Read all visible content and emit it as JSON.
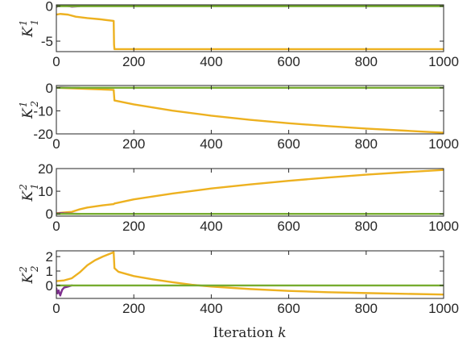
{
  "chart_data": [
    {
      "type": "line",
      "ylabel_main": "K",
      "ylabel_sup": "1",
      "ylabel_sub": "1",
      "xlim": [
        0,
        1000
      ],
      "ylim": [
        -6.5,
        0.2
      ],
      "xticks": [
        0,
        200,
        400,
        600,
        800,
        1000
      ],
      "yticks": [
        -5,
        0
      ],
      "ytick_labels": [
        "-5",
        "0"
      ],
      "series": [
        {
          "color": "#EDB120",
          "x": [
            0,
            10,
            30,
            50,
            80,
            110,
            148,
            149,
            150,
            300,
            600,
            1000
          ],
          "y": [
            -1.2,
            -1.1,
            -1.2,
            -1.5,
            -1.7,
            -1.85,
            -2.1,
            -5.5,
            -6.15,
            -6.15,
            -6.15,
            -6.15
          ]
        },
        {
          "color": "#7E2F8E",
          "x": [
            0,
            5,
            10,
            20,
            30,
            40,
            50,
            60
          ],
          "y": [
            -0.1,
            0.05,
            0.12,
            0.08,
            0.03,
            -0.05,
            -0.02,
            0.0
          ]
        },
        {
          "color": "#77AC30",
          "x": [
            0,
            50,
            100,
            150,
            1000
          ],
          "y": [
            0.0,
            0.0,
            0.0,
            0.0,
            0.0
          ]
        }
      ]
    },
    {
      "type": "line",
      "ylabel_main": "K",
      "ylabel_sup": "1",
      "ylabel_sub": "2",
      "xlim": [
        0,
        1000
      ],
      "ylim": [
        -20,
        1
      ],
      "xticks": [
        0,
        200,
        400,
        600,
        800,
        1000
      ],
      "yticks": [
        -20,
        -10,
        0
      ],
      "ytick_labels": [
        "-20",
        "-10",
        "0"
      ],
      "series": [
        {
          "color": "#EDB120",
          "x": [
            0,
            50,
            100,
            148,
            150,
            200,
            300,
            400,
            500,
            600,
            700,
            800,
            900,
            1000
          ],
          "y": [
            0.0,
            -0.3,
            -0.6,
            -0.9,
            -5.5,
            -7.2,
            -9.9,
            -12.1,
            -13.9,
            -15.4,
            -16.6,
            -17.7,
            -18.6,
            -19.5
          ]
        },
        {
          "color": "#7E2F8E",
          "x": [
            0,
            10,
            20,
            40,
            60
          ],
          "y": [
            0.0,
            0.15,
            0.1,
            0.05,
            0.0
          ]
        },
        {
          "color": "#77AC30",
          "x": [
            0,
            100,
            150,
            1000
          ],
          "y": [
            0.0,
            0.0,
            0.0,
            0.0
          ]
        }
      ]
    },
    {
      "type": "line",
      "ylabel_main": "K",
      "ylabel_sup": "2",
      "ylabel_sub": "1",
      "xlim": [
        0,
        1000
      ],
      "ylim": [
        -1,
        20
      ],
      "xticks": [
        0,
        200,
        400,
        600,
        800,
        1000
      ],
      "yticks": [
        0,
        10,
        20
      ],
      "ytick_labels": [
        "0",
        "10",
        "20"
      ],
      "series": [
        {
          "color": "#EDB120",
          "x": [
            0,
            20,
            40,
            60,
            80,
            100,
            120,
            148,
            150,
            200,
            300,
            400,
            500,
            600,
            700,
            800,
            900,
            1000
          ],
          "y": [
            0.3,
            0.6,
            0.9,
            2.0,
            2.8,
            3.3,
            3.8,
            4.3,
            4.6,
            6.4,
            9.0,
            11.2,
            13.0,
            14.6,
            16.0,
            17.3,
            18.4,
            19.4
          ]
        },
        {
          "color": "#7E2F8E",
          "x": [
            0,
            10,
            20,
            40,
            60
          ],
          "y": [
            0.1,
            0.3,
            0.2,
            0.1,
            0.0
          ]
        },
        {
          "color": "#77AC30",
          "x": [
            0,
            100,
            150,
            1000
          ],
          "y": [
            0.0,
            0.0,
            0.0,
            0.0
          ]
        }
      ]
    },
    {
      "type": "line",
      "ylabel_main": "K",
      "ylabel_sup": "2",
      "ylabel_sub": "2",
      "xlim": [
        0,
        1000
      ],
      "ylim": [
        -0.9,
        2.4
      ],
      "xticks": [
        0,
        200,
        400,
        600,
        800,
        1000
      ],
      "yticks": [
        0,
        1,
        2
      ],
      "ytick_labels": [
        "0",
        "1",
        "2"
      ],
      "series": [
        {
          "color": "#EDB120",
          "x": [
            0,
            20,
            40,
            60,
            80,
            100,
            120,
            148,
            150,
            160,
            200,
            250,
            300,
            350,
            400,
            500,
            600,
            700,
            800,
            900,
            1000
          ],
          "y": [
            0.3,
            0.35,
            0.5,
            0.9,
            1.4,
            1.75,
            2.0,
            2.3,
            1.2,
            0.95,
            0.65,
            0.42,
            0.22,
            0.05,
            -0.08,
            -0.25,
            -0.38,
            -0.47,
            -0.53,
            -0.58,
            -0.63
          ]
        },
        {
          "color": "#7E2F8E",
          "x": [
            0,
            3,
            6,
            10,
            15,
            20,
            30,
            40
          ],
          "y": [
            -0.2,
            -0.55,
            -0.35,
            -0.7,
            -0.3,
            -0.15,
            -0.08,
            0.0
          ]
        },
        {
          "color": "#77AC30",
          "x": [
            0,
            100,
            150,
            1000
          ],
          "y": [
            0.0,
            0.0,
            0.0,
            0.0
          ]
        }
      ]
    }
  ],
  "xlabel_text": "Iteration ",
  "xlabel_var": "k"
}
